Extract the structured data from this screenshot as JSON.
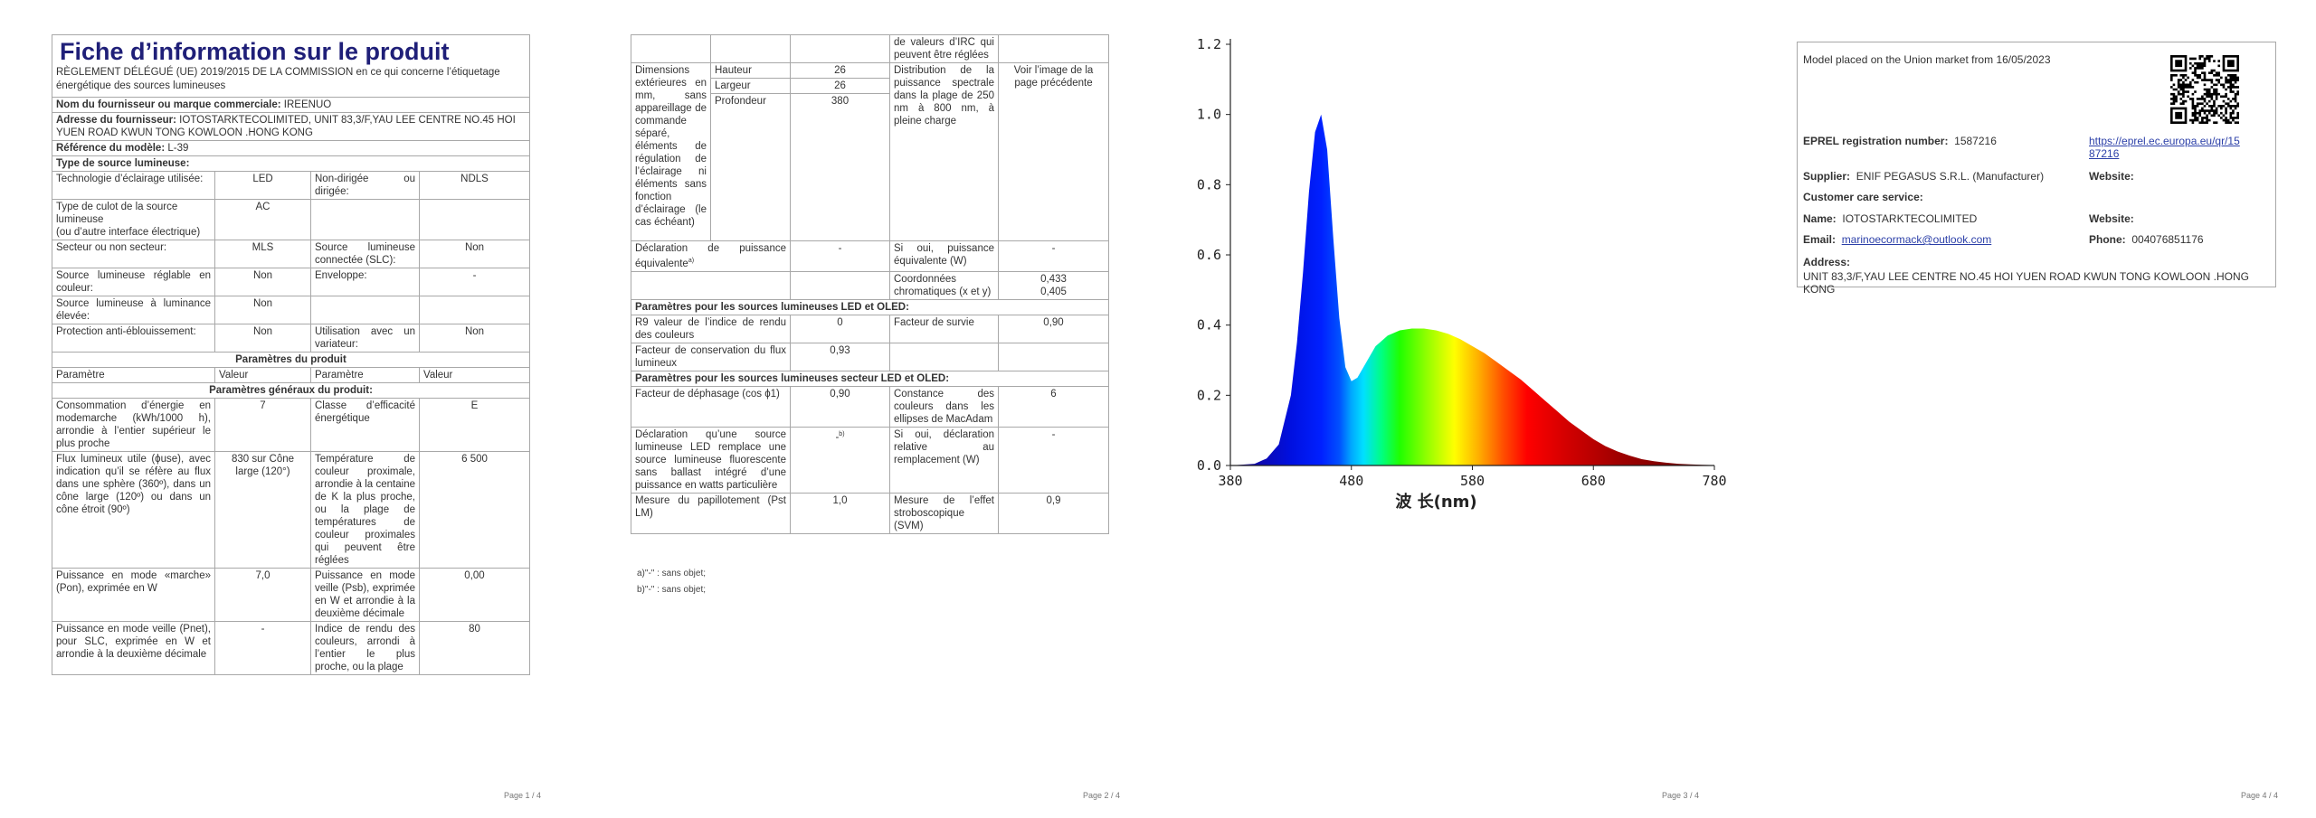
{
  "p1": {
    "title": "Fiche d’information sur le produit",
    "regulation": "RÈGLEMENT DÉLÉGUÉ (UE) 2019/2015 DE LA COMMISSION en ce qui concerne l’étiquetage énergétique des sources lumineuses",
    "supplier_label": "Nom du fournisseur ou marque commerciale:",
    "supplier_value": "IREENUO",
    "address_label": "Adresse du fournisseur:",
    "address_value": "IOTOSTARKTECOLIMITED, UNIT 83,3/F,YAU LEE CENTRE NO.45 HOI YUEN ROAD KWUN TONG KOWLOON .HONG KONG",
    "model_label": "Référence du modèle:",
    "model_value": "L-39",
    "type_header": "Type de source lumineuse:",
    "type_rows": [
      {
        "l1": "Technologie d’éclairage utilisée:",
        "v1": "LED",
        "l2": "Non-dirigée ou dirigée:",
        "v2": "NDLS"
      },
      {
        "l1": "Type de culot de la source lumineuse\n(ou d’autre interface électrique)",
        "v1": "AC",
        "l2": "",
        "v2": ""
      },
      {
        "l1": "Secteur ou non secteur:",
        "v1": "MLS",
        "l2": "Source lumineuse connectée (SLC):",
        "v2": "Non"
      },
      {
        "l1": "Source lumineuse réglable en couleur:",
        "v1": "Non",
        "l2": "Enveloppe:",
        "v2": "-"
      },
      {
        "l1": "Source lumineuse à luminance élevée:",
        "v1": "Non",
        "l2": "",
        "v2": ""
      },
      {
        "l1": "Protection anti-éblouissement:",
        "v1": "Non",
        "l2": "Utilisation avec un variateur:",
        "v2": "Non"
      }
    ],
    "product_params": "Paramètres du produit",
    "col_param": "Paramètre",
    "col_value": "Valeur",
    "general_params": "Paramètres généraux du produit:",
    "general_rows": [
      {
        "l1": "Consommation d’énergie en modemarche (kWh/1000 h), arrondie à l’entier supérieur le plus proche",
        "v1": "7",
        "l2": "Classe d’efficacité énergétique",
        "v2": "E"
      },
      {
        "l1": "Flux lumineux utile (ϕuse), avec indication qu’il se réfère au flux dans une sphère (360º), dans un cône large (120º) ou dans un cône étroit (90º)",
        "v1": "830 sur Cône large (120°)",
        "l2": "Température de couleur proximale, arrondie à la centaine de K la plus proche, ou la plage de températures de couleur proximales qui peuvent être réglées",
        "v2": "6 500"
      },
      {
        "l1": "Puissance en mode «marche» (Pon), exprimée en W",
        "v1": "7,0",
        "l2": "Puissance en mode veille (Psb), exprimée en W et arrondie à la deuxième décimale",
        "v2": "0,00"
      },
      {
        "l1": "Puissance en mode veille (Pnet), pour SLC, exprimée en W et arrondie à la deuxième décimale",
        "v1": "-",
        "l2": "Indice de rendu des couleurs, arrondi à l’entier le plus proche, ou la plage",
        "v2": "80"
      }
    ],
    "page": "Page 1 / 4"
  },
  "p2": {
    "top_cont": "de valeurs d’IRC qui peuvent être réglées",
    "dims_label": "Dimensions extérieures en mm, sans appareillage de commande séparé, éléments de régulation de l’éclairage ni éléments sans fonction d’éclairage (le cas échéant)",
    "dims": [
      {
        "name": "Hauteur",
        "value": "26"
      },
      {
        "name": "Largeur",
        "value": "26"
      },
      {
        "name": "Profondeur",
        "value": "380"
      }
    ],
    "spd_label": "Distribution de la puissance spectrale dans la plage de 250 nm à 800 nm, à pleine charge",
    "spd_value": "Voir l’image de la page précédente",
    "equiv_label": "Déclaration de puissance équivalente",
    "equiv_sup": "a)",
    "equiv_value": "-",
    "equiv_w_label": "Si oui, puissance équivalente (W)",
    "equiv_w_value": "-",
    "chroma_label": "Coordonnées chromatiques (x et y)",
    "chroma_x": "0,433",
    "chroma_y": "0,405",
    "led_header": "Paramètres pour les sources lumineuses LED et OLED:",
    "r9_label": "R9 valeur de l’indice de rendu des couleurs",
    "r9_value": "0",
    "survival_label": "Facteur de survie",
    "survival_value": "0,90",
    "maint_label": "Facteur de conservation du flux lumineux",
    "maint_value": "0,93",
    "mains_header": "Paramètres pour les sources lumineuses secteur LED et OLED:",
    "pf_label": "Facteur de déphasage (cos ϕ1)",
    "pf_value": "0,90",
    "macadam_label": "Constance des couleurs dans les ellipses de MacAdam",
    "macadam_value": "6",
    "replace_label": "Déclaration qu’une source lumineuse LED remplace une source lumineuse fluorescente sans ballast intégré d’une puissance en watts particulière",
    "replace_value": "-",
    "replace_sup": "b)",
    "replace_w_label": "Si oui, déclaration relative au remplacement (W)",
    "replace_w_value": "-",
    "flicker_label": "Mesure du papillotement (Pst LM)",
    "flicker_value": "1,0",
    "strobo_label": "Mesure de l’effet stroboscopique (SVM)",
    "strobo_value": "0,9",
    "fn_a": "a)\"-\" : sans objet;",
    "fn_b": "b)\"-\" : sans objet;",
    "page": "Page 2 / 4"
  },
  "chart_data": {
    "type": "area",
    "xlabel": "波 长(nm)",
    "ylabel": "",
    "xlim": [
      380,
      780
    ],
    "ylim": [
      0.0,
      1.2
    ],
    "xticks": [
      "380",
      "480",
      "580",
      "680",
      "780"
    ],
    "yticks": [
      "0.0",
      "0.2",
      "0.4",
      "0.6",
      "0.8",
      "1.0",
      "1.2"
    ],
    "grid": false,
    "series": [
      {
        "x": [
          380,
          400,
          410,
          420,
          430,
          435,
          440,
          445,
          450,
          455,
          460,
          465,
          470,
          475,
          480,
          485,
          490,
          495,
          500,
          510,
          520,
          530,
          540,
          550,
          560,
          570,
          580,
          590,
          600,
          610,
          620,
          630,
          640,
          650,
          660,
          670,
          680,
          690,
          700,
          710,
          720,
          730,
          740,
          750,
          760,
          770,
          780
        ],
        "values": [
          0,
          0.005,
          0.02,
          0.06,
          0.2,
          0.35,
          0.55,
          0.78,
          0.95,
          1.0,
          0.9,
          0.65,
          0.42,
          0.28,
          0.24,
          0.25,
          0.28,
          0.31,
          0.34,
          0.37,
          0.385,
          0.39,
          0.39,
          0.385,
          0.375,
          0.36,
          0.34,
          0.32,
          0.295,
          0.27,
          0.245,
          0.215,
          0.185,
          0.155,
          0.125,
          0.1,
          0.075,
          0.055,
          0.04,
          0.028,
          0.018,
          0.012,
          0.008,
          0.005,
          0.003,
          0.002,
          0.001
        ]
      }
    ],
    "page": "Page 3 / 4"
  },
  "p4": {
    "placed": "Model placed on the Union market from 16/05/2023",
    "eprel_label": "EPREL registration number:",
    "eprel_value": "1587216",
    "eprel_url_1": "https://eprel.ec.europa.eu/qr/15",
    "eprel_url_2": "87216",
    "supplier_label": "Supplier:",
    "supplier_value": "ENIF PEGASUS S.R.L. (Manufacturer)",
    "website_label": "Website:",
    "care_label": "Customer care service:",
    "name_label": "Name:",
    "name_value": "IOTOSTARKTECOLIMITED",
    "website2_label": "Website:",
    "email_label": "Email:",
    "email_value": "marinoecormack@outlook.com",
    "phone_label": "Phone:",
    "phone_value": "004076851176",
    "address_label": "Address:",
    "address_value": "UNIT 83,3/F,YAU LEE CENTRE NO.45 HOI YUEN ROAD KWUN TONG KOWLOON .HONG KONG",
    "page": "Page 4 / 4"
  }
}
